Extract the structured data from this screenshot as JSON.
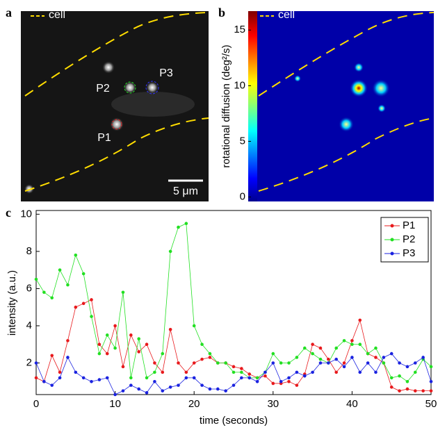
{
  "panel_a": {
    "letter": "a",
    "legend": "cell",
    "spots": [
      "P1",
      "P2",
      "P3"
    ],
    "scale_bar": "5 μm"
  },
  "panel_b": {
    "letter": "b",
    "legend": "cell",
    "colorbar_label": "rotational diffusion (deg²/s)",
    "ylim": [
      -0.4,
      16.7
    ],
    "yticks": [
      0,
      5,
      10,
      15
    ]
  },
  "chart_data": {
    "type": "line",
    "letter": "c",
    "xlabel": "time (seconds)",
    "ylabel": "intensity (a.u.)",
    "x": [
      0,
      1,
      2,
      3,
      4,
      5,
      6,
      7,
      8,
      9,
      10,
      11,
      12,
      13,
      14,
      15,
      16,
      17,
      18,
      19,
      20,
      21,
      22,
      23,
      24,
      25,
      26,
      27,
      28,
      29,
      30,
      31,
      32,
      33,
      34,
      35,
      36,
      37,
      38,
      39,
      40,
      41,
      42,
      43,
      44,
      45,
      46,
      47,
      48,
      49,
      50
    ],
    "series": [
      {
        "name": "P1",
        "color": "#e8191c",
        "values": [
          1.2,
          1,
          2.4,
          1.5,
          3.2,
          5,
          5.2,
          5.4,
          3,
          2.5,
          4,
          1.8,
          3.5,
          2.6,
          3,
          2,
          1.5,
          3.8,
          2,
          1.5,
          2,
          2.2,
          2.3,
          2,
          2,
          1.8,
          1.7,
          1.4,
          1.2,
          1.3,
          0.9,
          0.9,
          1,
          0.8,
          1.4,
          3,
          2.8,
          2.2,
          1.5,
          2,
          3.2,
          4.3,
          2.5,
          2.3,
          2,
          0.7,
          0.5,
          0.6,
          0.5,
          0.5,
          0.5
        ]
      },
      {
        "name": "P2",
        "color": "#22e022",
        "values": [
          6.5,
          5.8,
          5.5,
          7,
          6.2,
          7.8,
          6.8,
          4.5,
          2.5,
          3.5,
          2.8,
          5.8,
          1.2,
          3.3,
          1.2,
          1.5,
          2.5,
          8,
          9.3,
          9.5,
          4,
          3,
          2.5,
          2,
          2,
          1.5,
          1.5,
          1.2,
          1.2,
          1.5,
          2.5,
          2,
          2,
          2.3,
          2.8,
          2.5,
          2.2,
          2,
          2.8,
          3.2,
          3,
          3,
          2.5,
          2.8,
          2,
          1.2,
          1.3,
          1,
          1.5,
          2.2,
          1.8
        ]
      },
      {
        "name": "P3",
        "color": "#1a22e0",
        "values": [
          2,
          1,
          0.8,
          1.2,
          2.3,
          1.5,
          1.2,
          1,
          1.1,
          1.2,
          0.3,
          0.5,
          0.8,
          0.6,
          0.4,
          1,
          0.5,
          0.7,
          0.8,
          1.2,
          1.2,
          0.8,
          0.6,
          0.6,
          0.5,
          0.8,
          1.2,
          1.2,
          1,
          1.5,
          2,
          1,
          1.2,
          1.5,
          1.3,
          1.5,
          2,
          2,
          2.2,
          1.8,
          2.3,
          1.5,
          2,
          1.5,
          2.3,
          2.5,
          2,
          1.8,
          2,
          2.3,
          1
        ]
      }
    ],
    "xlim": [
      0,
      50
    ],
    "xticks": [
      0,
      10,
      20,
      30,
      40,
      50
    ],
    "ylim": [
      0.3,
      10.2
    ],
    "yticks": [
      2,
      4,
      6,
      8,
      10
    ],
    "legend": "upper right"
  }
}
